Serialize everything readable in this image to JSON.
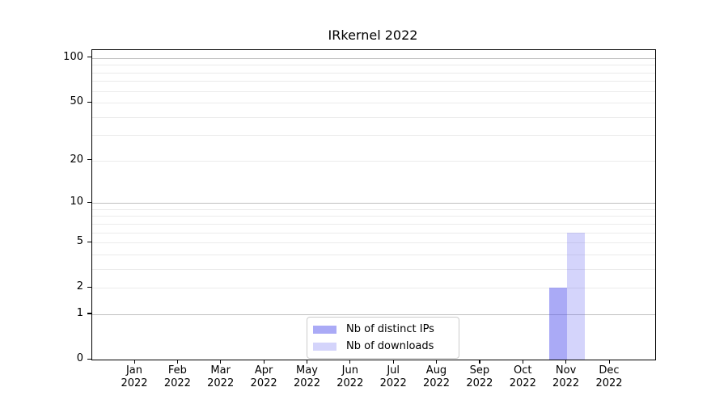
{
  "title": "IRkernel 2022",
  "chart_data": {
    "type": "bar",
    "title": "IRkernel 2022",
    "xlabel": "",
    "ylabel": "",
    "scale": "log1p",
    "ylim": [
      0,
      113
    ],
    "categories": [
      "Jan",
      "Feb",
      "Mar",
      "Apr",
      "May",
      "Jun",
      "Jul",
      "Aug",
      "Sep",
      "Oct",
      "Nov",
      "Dec"
    ],
    "category_year": "2022",
    "series": [
      {
        "name": "Nb of distinct IPs",
        "color": "rgba(85,85,238,0.5)",
        "values": [
          0,
          0,
          0,
          0,
          0,
          0,
          0,
          0,
          0,
          0,
          2,
          0
        ]
      },
      {
        "name": "Nb of downloads",
        "color": "rgba(85,85,238,0.25)",
        "values": [
          0,
          0,
          0,
          0,
          0,
          0,
          0,
          0,
          0,
          0,
          6,
          0
        ]
      }
    ],
    "y_ticks": [
      0,
      1,
      2,
      5,
      10,
      20,
      50,
      100
    ],
    "y_major_grid": [
      1,
      10,
      100
    ],
    "y_minor_grid": [
      2,
      3,
      4,
      5,
      6,
      7,
      8,
      9,
      20,
      30,
      40,
      50,
      60,
      70,
      80,
      90
    ],
    "grid_on": true,
    "legend_position": "bottom-center",
    "colors": {
      "major_grid": "#c0c0c0",
      "minor_grid": "#ebebeb",
      "spine": "#000000",
      "text": "#000000"
    }
  },
  "legend": {
    "entries": [
      {
        "label": "Nb of distinct IPs"
      },
      {
        "label": "Nb of downloads"
      }
    ]
  }
}
